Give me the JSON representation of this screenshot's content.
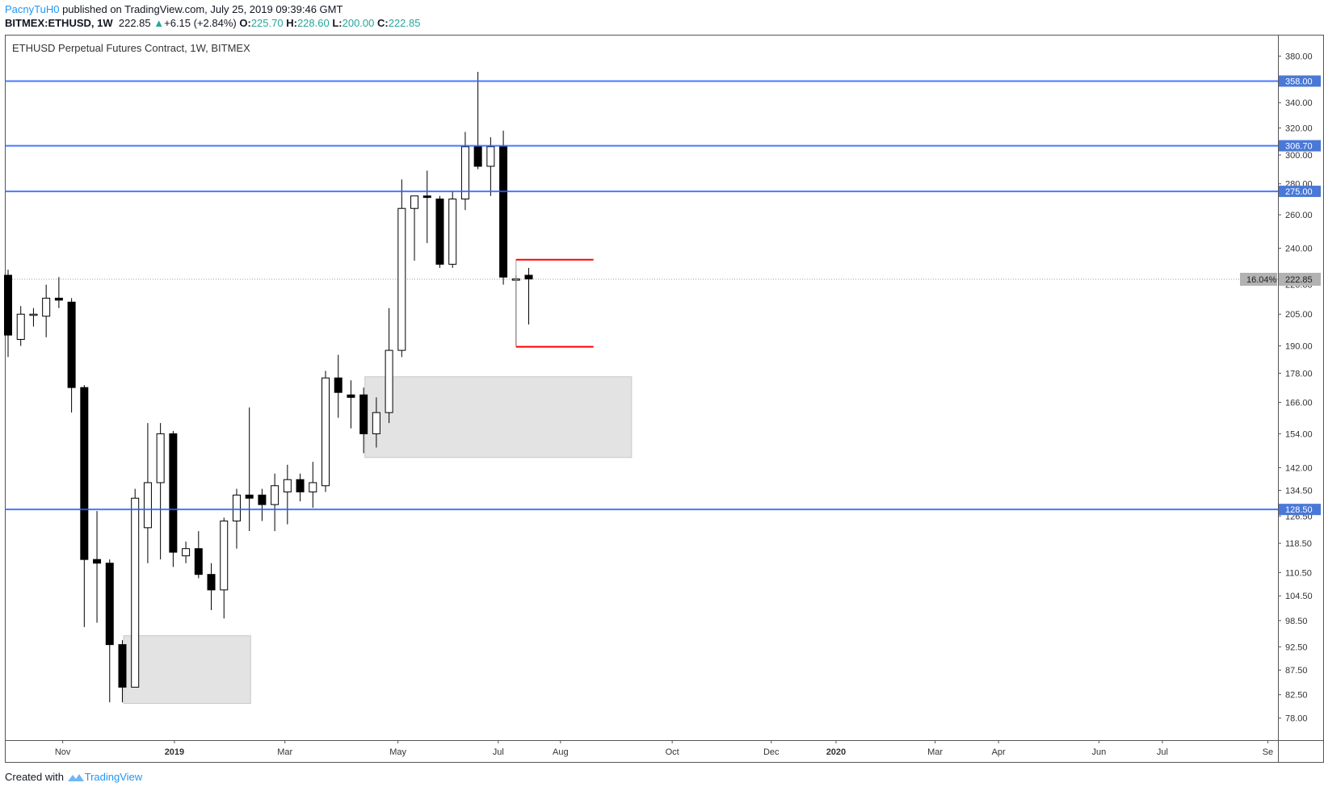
{
  "header": {
    "publisher": "PacnyTuH0",
    "published_text": "published on TradingView.com, July 25, 2019 09:39:46 GMT",
    "symbol": "BITMEX:ETHUSD, 1W",
    "last": "222.85",
    "change": "+6.15 (+2.84%)",
    "o_label": "O:",
    "o_value": "225.70",
    "h_label": "H:",
    "h_value": "228.60",
    "l_label": "L:",
    "l_value": "200.00",
    "c_label": "C:",
    "c_value": "222.85"
  },
  "footer": {
    "created": "Created with",
    "brand": "TradingView"
  },
  "colors": {
    "level_line": "#2962ff",
    "price_label_bg": "#4a78d6",
    "zone_fill": "#e3e3e3",
    "marker": "#ff0000",
    "current_price_bg": "#b2b2b2",
    "up_candle": "#ffffff",
    "down_candle": "#000000"
  },
  "chart_data": {
    "type": "candlestick",
    "title": "ETHUSD Perpetual Futures Contract, 1W, BITMEX",
    "y_scale": "log",
    "ylim": [
      74,
      400
    ],
    "y_ticks": [
      "380.00",
      "340.00",
      "320.00",
      "300.00",
      "280.00",
      "260.00",
      "240.00",
      "220.00",
      "205.00",
      "190.00",
      "178.00",
      "166.00",
      "154.00",
      "142.00",
      "134.50",
      "126.50",
      "118.50",
      "110.50",
      "104.50",
      "98.50",
      "92.50",
      "87.50",
      "82.50",
      "78.00"
    ],
    "x_ticks": [
      "Nov",
      "2019",
      "Mar",
      "May",
      "Jul",
      "Aug",
      "Oct",
      "Dec",
      "2020",
      "Mar",
      "Apr",
      "Jun",
      "Jul",
      "Se"
    ],
    "x_ticks_bold": [
      "2019",
      "2020"
    ],
    "x_tick_week_index": [
      4.3,
      13.1,
      21.8,
      30.7,
      38.6,
      43.5,
      52.3,
      60.1,
      65.2,
      73.0,
      78.0,
      85.9,
      90.9,
      99.2
    ],
    "candles": [
      [
        225,
        228,
        185,
        195
      ],
      [
        193,
        209,
        190,
        205
      ],
      [
        205,
        208,
        199,
        205
      ],
      [
        204,
        220,
        194,
        213
      ],
      [
        213,
        224,
        208,
        212
      ],
      [
        211,
        213,
        162,
        172
      ],
      [
        172,
        173,
        97,
        114
      ],
      [
        114,
        128,
        98,
        113
      ],
      [
        113,
        114,
        81,
        93
      ],
      [
        93,
        94,
        81,
        84
      ],
      [
        84,
        135,
        84,
        132
      ],
      [
        123,
        158,
        113,
        137
      ],
      [
        137,
        158,
        114,
        154
      ],
      [
        154,
        155,
        112,
        116
      ],
      [
        115,
        119,
        113,
        117
      ],
      [
        117,
        122,
        109,
        110
      ],
      [
        110,
        113,
        101,
        106
      ],
      [
        106,
        126,
        99,
        125
      ],
      [
        125,
        135,
        117,
        133
      ],
      [
        133,
        164,
        122,
        132
      ],
      [
        133,
        135,
        125,
        130
      ],
      [
        130,
        140,
        122,
        136
      ],
      [
        134,
        143,
        124,
        138
      ],
      [
        138,
        140,
        131,
        134
      ],
      [
        134,
        144,
        129,
        137
      ],
      [
        136,
        179,
        134,
        176
      ],
      [
        176,
        186,
        160,
        170
      ],
      [
        169,
        175,
        156,
        168
      ],
      [
        169,
        172,
        147,
        154
      ],
      [
        154,
        168,
        149,
        162
      ],
      [
        162,
        208,
        158,
        188
      ],
      [
        188,
        283,
        185,
        264
      ],
      [
        264,
        272,
        233,
        272
      ],
      [
        272,
        289,
        243,
        271
      ],
      [
        270,
        272,
        229,
        231
      ],
      [
        231,
        275,
        229,
        270
      ],
      [
        270,
        317,
        263,
        306
      ],
      [
        306,
        366,
        290,
        292
      ],
      [
        292,
        313,
        272,
        306
      ],
      [
        306,
        318,
        220,
        224
      ],
      [
        223,
        225,
        190,
        223
      ],
      [
        225,
        229,
        200,
        223
      ]
    ],
    "levels": [
      {
        "value": 358.0,
        "label": "358.00"
      },
      {
        "value": 306.7,
        "label": "306.70"
      },
      {
        "value": 275.0,
        "label": "275.00"
      },
      {
        "value": 128.5,
        "label": "128.50"
      }
    ],
    "current_price": {
      "value": 222.85,
      "label": "222.85",
      "percent": "16.04%"
    },
    "zones": [
      {
        "start_week": 9.1,
        "end_week": 19.1,
        "top": 95.0,
        "bottom": 80.8
      },
      {
        "start_week": 28.1,
        "end_week": 49.1,
        "top": 176.5,
        "bottom": 145.5
      }
    ],
    "range_marker": {
      "start_week": 40.0,
      "end_week": 46.1,
      "top": 233.5,
      "bottom": 189.6
    }
  }
}
